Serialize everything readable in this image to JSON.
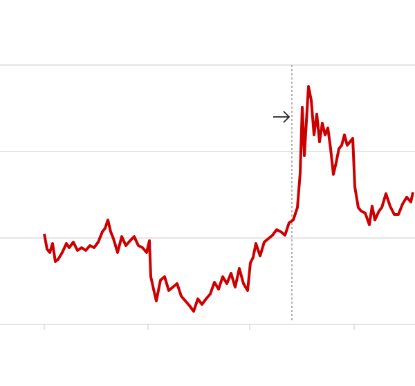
{
  "chart_data": {
    "type": "line",
    "x": [
      0,
      4,
      8,
      12,
      16,
      20,
      26,
      32,
      36,
      42,
      48,
      54,
      60,
      66,
      72,
      78,
      84,
      88,
      92,
      96,
      100,
      106,
      112,
      118,
      124,
      130,
      136,
      142,
      148,
      152,
      154,
      158,
      162,
      168,
      174,
      180,
      186,
      192,
      198,
      204,
      210,
      216,
      222,
      228,
      234,
      240,
      246,
      252,
      258,
      264,
      270,
      276,
      282,
      288,
      294,
      298,
      302,
      306,
      312,
      318,
      324,
      330,
      336,
      342,
      348,
      354,
      360,
      366,
      370,
      373,
      376,
      379,
      382,
      386,
      390,
      394,
      398,
      402,
      406,
      410,
      414,
      418,
      422,
      426,
      430,
      434,
      438,
      442,
      446,
      449,
      454,
      458,
      464,
      470,
      474,
      478,
      484,
      488,
      494,
      500,
      506,
      512,
      518,
      524,
      530,
      533
    ],
    "series": [
      {
        "color": "#cc0000",
        "values": [
          104.8,
          87.2,
          83.2,
          93.6,
          72.8,
          75.2,
          83.2,
          93.6,
          88.8,
          95.2,
          85.6,
          88.8,
          85.6,
          91.2,
          88.8,
          95.2,
          107.2,
          111.2,
          120.8,
          107.2,
          99.2,
          83.2,
          101.6,
          91.2,
          96.8,
          101.6,
          91.2,
          88.8,
          83.2,
          96.8,
          55.2,
          40.8,
          27.2,
          51.2,
          55.2,
          39.2,
          43.2,
          47.2,
          32.8,
          27.2,
          21.6,
          15.2,
          29.6,
          23.2,
          29.6,
          35.2,
          48.8,
          40.8,
          55.2,
          47.2,
          59.2,
          43.2,
          64.8,
          47.2,
          39.2,
          71.2,
          77.6,
          93.6,
          79.2,
          95.2,
          99.2,
          103.2,
          109.6,
          107.2,
          103.2,
          117.6,
          120.8,
          135.2,
          175.2,
          251.2,
          195.2,
          235.2,
          275.2,
          259.2,
          219.2,
          243.2,
          211.2,
          232.8,
          219.2,
          227.2,
          203.2,
          173.6,
          187.2,
          203.2,
          207.2,
          219.2,
          207.2,
          211.2,
          215.2,
          159.2,
          135.2,
          131.2,
          128.8,
          115.2,
          136.8,
          120.8,
          131.2,
          135.2,
          151.2,
          136.8,
          127.2,
          127.2,
          139.2,
          147.2,
          141.6,
          152.8
        ]
      }
    ],
    "xlim": [
      -64,
      536
    ],
    "ylim": [
      0,
      300
    ],
    "xticks": [
      0,
      150,
      297,
      448
    ],
    "yticks": [
      0,
      100,
      200,
      300
    ],
    "grid": true,
    "vline": 358
  }
}
